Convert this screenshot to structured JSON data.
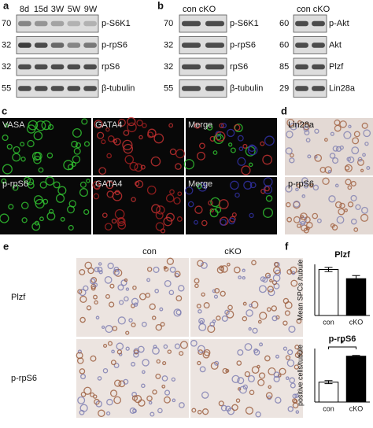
{
  "panel_a": {
    "label": "a",
    "columns": [
      "8d",
      "15d",
      "3W",
      "5W",
      "9W"
    ],
    "rows": [
      {
        "mw": "70",
        "name": "p-S6K1"
      },
      {
        "mw": "32",
        "name": "p-rpS6"
      },
      {
        "mw": "32",
        "name": "rpS6"
      },
      {
        "mw": "55",
        "name": "β-tubulin"
      }
    ]
  },
  "panel_b": {
    "label": "b",
    "left": {
      "columns": "con cKO",
      "rows": [
        {
          "mw": "70",
          "name": "p-S6K1"
        },
        {
          "mw": "32",
          "name": "p-rpS6"
        },
        {
          "mw": "32",
          "name": "rpS6"
        },
        {
          "mw": "55",
          "name": "β-tubulin"
        }
      ]
    },
    "right": {
      "columns": "con cKO",
      "rows": [
        {
          "mw": "60",
          "name": "p-Akt"
        },
        {
          "mw": "60",
          "name": "Akt"
        },
        {
          "mw": "85",
          "name": "Plzf"
        },
        {
          "mw": "29",
          "name": "Lin28a"
        }
      ]
    }
  },
  "panel_c": {
    "label": "c",
    "rows": [
      [
        "VASA",
        "GATA4",
        "Merge"
      ],
      [
        "p-rpS6",
        "GATA4",
        "Merge"
      ]
    ]
  },
  "panel_d": {
    "label": "d",
    "rows": [
      "Lin28a",
      "p-rpS6"
    ]
  },
  "panel_e": {
    "label": "e",
    "columns": [
      "con",
      "cKO"
    ],
    "rows": [
      "Plzf",
      "p-rpS6"
    ]
  },
  "panel_f": {
    "label": "f"
  },
  "chart_data": [
    {
      "type": "bar",
      "title": "Plzf",
      "y_label": "Mean SPCs /tubule",
      "categories": [
        "con",
        "cKO"
      ],
      "values": [
        4.5,
        3.6
      ],
      "errors": [
        0.2,
        0.3
      ],
      "colors": [
        "#ffffff",
        "#000000"
      ],
      "ylim": [
        0,
        5
      ]
    },
    {
      "type": "bar",
      "title": "p-rpS6",
      "y_label": "positive cells/tubule",
      "categories": [
        "con",
        "cKO"
      ],
      "values": [
        2.6,
        6.0
      ],
      "errors": [
        0.2,
        0.1
      ],
      "colors": [
        "#ffffff",
        "#000000"
      ],
      "ylim": [
        0,
        7
      ],
      "annotation": "*"
    }
  ]
}
